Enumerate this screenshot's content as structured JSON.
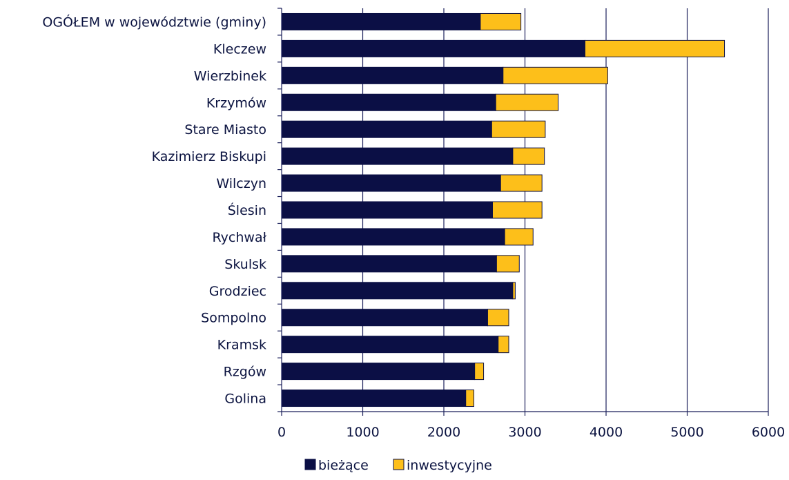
{
  "chart_data": {
    "type": "bar",
    "orientation": "horizontal",
    "stacked": true,
    "categories": [
      "OGÓŁEM w województwie (gminy)",
      "Kleczew",
      "Wierzbinek",
      "Krzymów",
      "Stare Miasto",
      "Kazimierz Biskupi",
      "Wilczyn",
      "Ślesin",
      "Rychwał",
      "Skulsk",
      "Grodziec",
      "Sompolno",
      "Kramsk",
      "Rzgów",
      "Golina"
    ],
    "series": [
      {
        "name": "bieżące",
        "color": "#0b0f45",
        "values": [
          2450,
          3740,
          2730,
          2640,
          2590,
          2850,
          2700,
          2600,
          2750,
          2650,
          2850,
          2540,
          2670,
          2380,
          2270
        ]
      },
      {
        "name": "inwestycyjne",
        "color": "#fdbf1a",
        "values": [
          500,
          1720,
          1290,
          770,
          660,
          390,
          510,
          610,
          350,
          280,
          30,
          260,
          130,
          110,
          100
        ]
      }
    ],
    "xlim": [
      0,
      6000
    ],
    "xticks": [
      "0",
      "1000",
      "2000",
      "3000",
      "4000",
      "5000",
      "6000"
    ],
    "grid": "vertical",
    "legend_position": "bottom"
  }
}
